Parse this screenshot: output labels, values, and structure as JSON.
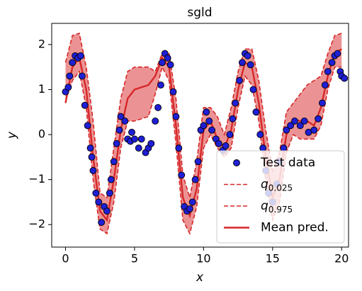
{
  "chart_data": {
    "type": "line",
    "title": "sgld",
    "x_label": "x",
    "y_label": "y",
    "x": [
      0,
      0.5,
      1,
      1.5,
      2,
      2.5,
      3,
      3.5,
      4,
      4.5,
      5,
      5.5,
      6,
      6.5,
      7,
      7.5,
      8,
      8.5,
      9,
      9.5,
      10,
      10.5,
      11,
      11.5,
      12,
      12.5,
      13,
      13.5,
      14,
      14.5,
      15,
      15.5,
      16,
      16.5,
      17,
      17.5,
      18,
      18.5,
      19,
      19.5,
      20
    ],
    "series": [
      {
        "name": "Test data",
        "type": "scatter",
        "color": "#1f1fd6",
        "x": [
          0,
          0.2,
          0.3,
          0.5,
          0.7,
          0.9,
          1.1,
          1.2,
          1.4,
          1.6,
          1.8,
          1.9,
          2.0,
          2.2,
          2.4,
          2.6,
          2.8,
          3.0,
          3.2,
          3.3,
          3.5,
          3.7,
          3.9,
          4.0,
          4.3,
          4.5,
          4.7,
          4.8,
          5.0,
          5.3,
          5.5,
          5.8,
          6.0,
          6.2,
          6.5,
          6.7,
          6.9,
          7.0,
          7.2,
          7.4,
          7.6,
          7.8,
          8.0,
          8.2,
          8.4,
          8.6,
          8.8,
          9.0,
          9.2,
          9.4,
          9.6,
          9.8,
          10.0,
          10.2,
          10.4,
          10.6,
          10.9,
          11.1,
          11.4,
          11.6,
          11.9,
          12.1,
          12.3,
          12.6,
          12.8,
          13.0,
          13.2,
          13.4,
          13.6,
          13.8,
          14.1,
          14.3,
          14.5,
          14.7,
          15.0,
          15.3,
          15.5,
          15.8,
          16.0,
          16.3,
          16.6,
          17.0,
          17.3,
          17.6,
          18.0,
          18.3,
          18.6,
          18.8,
          19.0,
          19.3,
          19.5,
          19.7,
          19.9,
          20.0,
          20.2
        ],
        "values": [
          0.95,
          1.05,
          1.3,
          1.6,
          1.75,
          1.7,
          1.75,
          1.3,
          0.65,
          0.2,
          -0.3,
          -0.5,
          -0.8,
          -1.3,
          -1.5,
          -1.95,
          -1.6,
          -1.7,
          -1.3,
          -1.0,
          -0.6,
          -0.2,
          0.1,
          0.4,
          0.3,
          -0.1,
          -0.15,
          0.05,
          -0.1,
          -0.3,
          -0.1,
          -0.4,
          -0.3,
          -0.2,
          0.3,
          0.6,
          1.1,
          1.6,
          1.8,
          1.7,
          1.55,
          0.95,
          0.4,
          -0.3,
          -0.9,
          -1.6,
          -1.7,
          -1.65,
          -1.5,
          -1.0,
          -0.6,
          0.1,
          0.2,
          0.5,
          0.3,
          0.1,
          -0.1,
          -0.2,
          -0.35,
          -0.25,
          0.0,
          0.35,
          0.7,
          1.2,
          1.6,
          1.8,
          1.75,
          1.55,
          1.0,
          0.5,
          0.0,
          -0.3,
          -0.8,
          -1.3,
          -1.5,
          -1.1,
          -0.6,
          -0.3,
          0.1,
          0.2,
          0.3,
          0.2,
          0.3,
          0.05,
          0.1,
          0.35,
          0.7,
          1.1,
          1.4,
          1.6,
          1.75,
          1.8,
          1.4,
          1.3,
          1.25
        ]
      },
      {
        "name": "q0.025",
        "type": "line",
        "dashed": true,
        "color": "#d62728",
        "values": [
          0.75,
          1.2,
          1.4,
          0.6,
          -1.0,
          -2.1,
          -2.2,
          -1.5,
          -0.3,
          0.3,
          0.3,
          0.35,
          0.4,
          0.9,
          1.5,
          1.2,
          -0.2,
          -1.9,
          -2.2,
          -1.6,
          -0.3,
          0.0,
          -0.3,
          -0.5,
          -0.3,
          0.6,
          1.3,
          1.1,
          0.3,
          -1.0,
          -1.9,
          -1.5,
          -0.4,
          0.0,
          -0.1,
          -0.1,
          -0.1,
          0.2,
          1.0,
          1.5,
          1.5
        ]
      },
      {
        "name": "q0.975",
        "type": "line",
        "dashed": true,
        "color": "#d62728",
        "values": [
          1.6,
          2.2,
          2.25,
          1.5,
          0.3,
          -1.3,
          -1.4,
          -0.3,
          0.8,
          1.4,
          1.5,
          1.5,
          1.5,
          1.4,
          1.8,
          1.8,
          0.8,
          -0.9,
          -1.4,
          -0.6,
          0.6,
          0.6,
          0.4,
          0.0,
          0.6,
          1.4,
          1.9,
          1.9,
          1.2,
          0.1,
          -0.8,
          -0.4,
          0.5,
          0.7,
          0.9,
          1.1,
          1.2,
          1.3,
          1.8,
          2.2,
          2.25
        ]
      },
      {
        "name": "Mean pred.",
        "type": "line",
        "dashed": false,
        "color": "#d62728",
        "values": [
          0.7,
          1.5,
          1.7,
          1.0,
          -0.5,
          -1.7,
          -1.9,
          -1.0,
          0.1,
          0.8,
          1.0,
          1.05,
          1.1,
          1.3,
          1.7,
          1.5,
          0.2,
          -1.4,
          -1.8,
          -1.2,
          0.1,
          0.3,
          -0.1,
          -0.3,
          0.1,
          1.0,
          1.6,
          1.5,
          0.7,
          -0.5,
          -1.4,
          -1.0,
          0.0,
          0.35,
          0.3,
          0.3,
          0.2,
          0.6,
          1.3,
          1.8,
          1.9
        ]
      }
    ],
    "fill_color": "#eb9394",
    "xlim": [
      -1,
      20.5
    ],
    "ylim": [
      -2.5,
      2.47
    ],
    "xticks": [
      0,
      5,
      10,
      15,
      20
    ],
    "yticks": [
      {
        "value": -2,
        "label": "−2"
      },
      {
        "value": -1,
        "label": "−1"
      },
      0,
      1,
      2
    ],
    "legend": "lower right"
  }
}
